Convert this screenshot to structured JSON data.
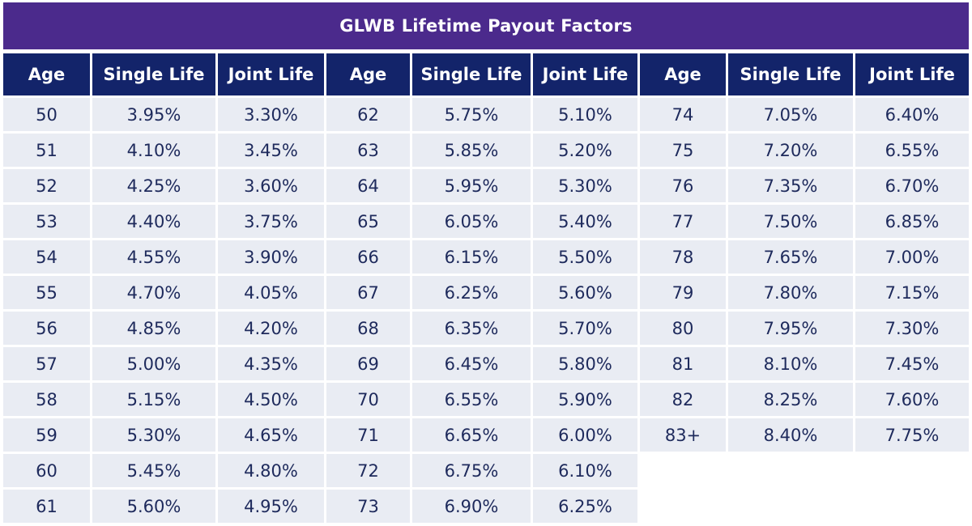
{
  "title": "GLWB Lifetime Payout Factors",
  "headers": [
    "Age",
    "Single Life",
    "Joint Life",
    "Age",
    "Single Life",
    "Joint Life",
    "Age",
    "Single Life",
    "Joint Life"
  ],
  "rows": [
    [
      "50",
      "3.95%",
      "3.30%",
      "62",
      "5.75%",
      "5.10%",
      "74",
      "7.05%",
      "6.40%"
    ],
    [
      "51",
      "4.10%",
      "3.45%",
      "63",
      "5.85%",
      "5.20%",
      "75",
      "7.20%",
      "6.55%"
    ],
    [
      "52",
      "4.25%",
      "3.60%",
      "64",
      "5.95%",
      "5.30%",
      "76",
      "7.35%",
      "6.70%"
    ],
    [
      "53",
      "4.40%",
      "3.75%",
      "65",
      "6.05%",
      "5.40%",
      "77",
      "7.50%",
      "6.85%"
    ],
    [
      "54",
      "4.55%",
      "3.90%",
      "66",
      "6.15%",
      "5.50%",
      "78",
      "7.65%",
      "7.00%"
    ],
    [
      "55",
      "4.70%",
      "4.05%",
      "67",
      "6.25%",
      "5.60%",
      "79",
      "7.80%",
      "7.15%"
    ],
    [
      "56",
      "4.85%",
      "4.20%",
      "68",
      "6.35%",
      "5.70%",
      "80",
      "7.95%",
      "7.30%"
    ],
    [
      "57",
      "5.00%",
      "4.35%",
      "69",
      "6.45%",
      "5.80%",
      "81",
      "8.10%",
      "7.45%"
    ],
    [
      "58",
      "5.15%",
      "4.50%",
      "70",
      "6.55%",
      "5.90%",
      "82",
      "8.25%",
      "7.60%"
    ],
    [
      "59",
      "5.30%",
      "4.65%",
      "71",
      "6.65%",
      "6.00%",
      "83+",
      "8.40%",
      "7.75%"
    ],
    [
      "60",
      "5.45%",
      "4.80%",
      "72",
      "6.75%",
      "6.10%",
      "",
      "",
      ""
    ],
    [
      "61",
      "5.60%",
      "4.95%",
      "73",
      "6.90%",
      "6.25%",
      "",
      "",
      ""
    ]
  ],
  "colors": {
    "title_background": "#4b2a8c",
    "header_background": "#13246a",
    "cell_background": "#e9ecf3",
    "cell_text": "#1e2a5c"
  }
}
